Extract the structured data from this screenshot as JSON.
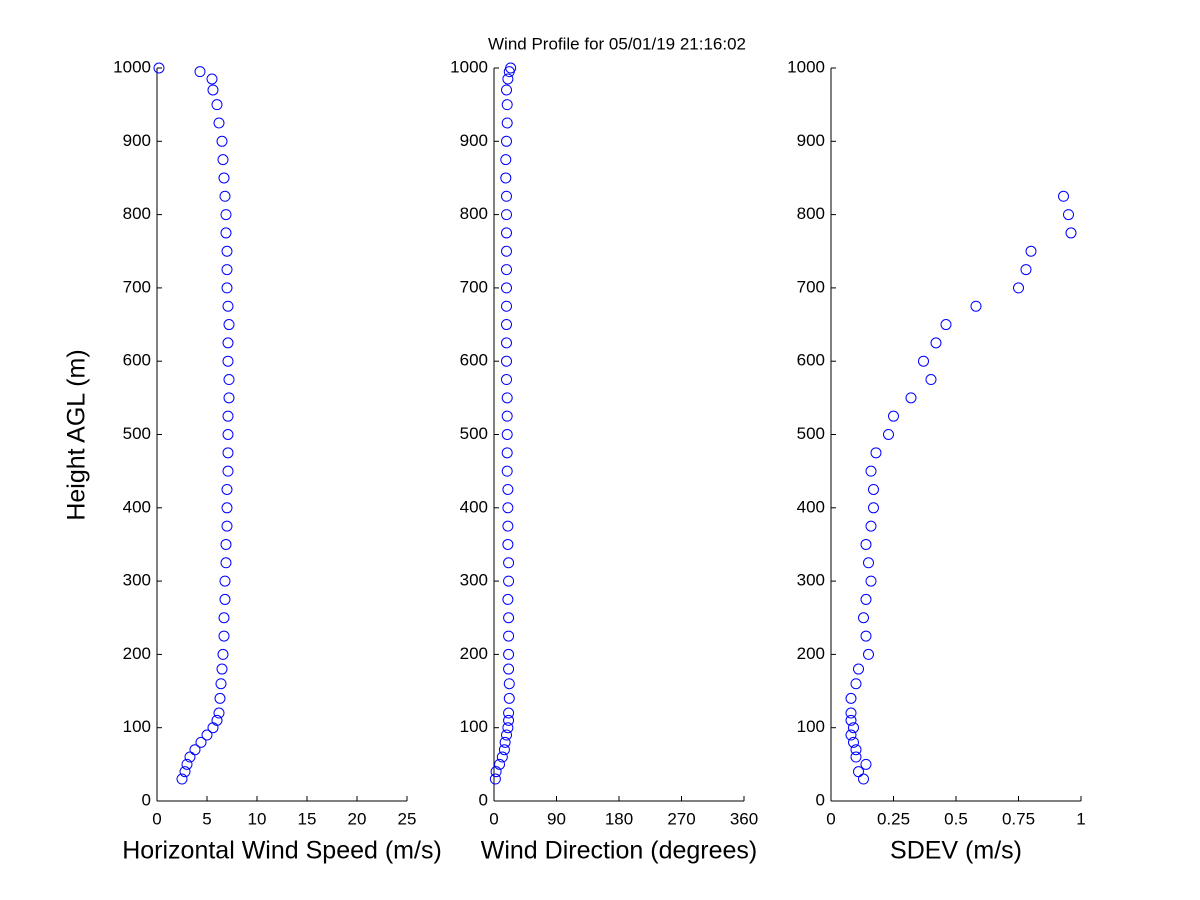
{
  "chart_data": [
    {
      "type": "scatter",
      "title": "Wind Profile for  05/01/19 21:16:02",
      "ylabel": "Height AGL (m)",
      "xlabel": "Horizontal Wind Speed (m/s)",
      "color": "#0000ff",
      "x": [
        2.5,
        2.8,
        3.0,
        3.3,
        3.8,
        4.4,
        5.0,
        5.6,
        6.0,
        6.2,
        6.3,
        6.4,
        6.5,
        6.6,
        6.7,
        6.7,
        6.8,
        6.8,
        6.9,
        6.9,
        7.0,
        7.0,
        7.0,
        7.1,
        7.1,
        7.1,
        7.1,
        7.2,
        7.2,
        7.1,
        7.1,
        7.2,
        7.1,
        7.0,
        7.0,
        7.0,
        6.9,
        6.9,
        6.8,
        6.7,
        6.6,
        6.5,
        6.2,
        6.0,
        5.6,
        5.5,
        4.3,
        0.2
      ],
      "values": [
        30,
        40,
        50,
        60,
        70,
        80,
        90,
        100,
        110,
        120,
        140,
        160,
        180,
        200,
        225,
        250,
        275,
        300,
        325,
        350,
        375,
        400,
        425,
        450,
        475,
        500,
        525,
        550,
        575,
        600,
        625,
        650,
        675,
        700,
        725,
        750,
        775,
        800,
        825,
        850,
        875,
        900,
        925,
        950,
        970,
        985,
        995,
        1000
      ],
      "xlim": [
        0,
        25
      ],
      "xticks": [
        0,
        5,
        10,
        15,
        20,
        25
      ],
      "ylim": [
        0,
        1000
      ],
      "yticks": [
        0,
        100,
        200,
        300,
        400,
        500,
        600,
        700,
        800,
        900,
        1000
      ]
    },
    {
      "type": "scatter",
      "xlabel": "Wind Direction (degrees)",
      "color": "#0000ff",
      "x": [
        2,
        3,
        8,
        12,
        15,
        16,
        18,
        20,
        21,
        21,
        22,
        22,
        21,
        21,
        21,
        21,
        20,
        21,
        21,
        20,
        20,
        20,
        20,
        19,
        19,
        19,
        19,
        19,
        18,
        18,
        18,
        18,
        18,
        18,
        18,
        18,
        18,
        18,
        18,
        17,
        17,
        18,
        19,
        19,
        18,
        20,
        22,
        24
      ],
      "values": [
        30,
        40,
        50,
        60,
        70,
        80,
        90,
        100,
        110,
        120,
        140,
        160,
        180,
        200,
        225,
        250,
        275,
        300,
        325,
        350,
        375,
        400,
        425,
        450,
        475,
        500,
        525,
        550,
        575,
        600,
        625,
        650,
        675,
        700,
        725,
        750,
        775,
        800,
        825,
        850,
        875,
        900,
        925,
        950,
        970,
        985,
        995,
        1000
      ],
      "xlim": [
        0,
        360
      ],
      "xticks": [
        0,
        90,
        180,
        270,
        360
      ],
      "ylim": [
        0,
        1000
      ],
      "yticks": [
        0,
        100,
        200,
        300,
        400,
        500,
        600,
        700,
        800,
        900,
        1000
      ]
    },
    {
      "type": "scatter",
      "xlabel": "SDEV  (m/s)",
      "color": "#0000ff",
      "x": [
        0.13,
        0.11,
        0.14,
        0.1,
        0.1,
        0.09,
        0.08,
        0.09,
        0.08,
        0.08,
        0.08,
        0.1,
        0.11,
        0.15,
        0.14,
        0.13,
        0.14,
        0.16,
        0.15,
        0.14,
        0.16,
        0.17,
        0.17,
        0.16,
        0.18,
        0.23,
        0.25,
        0.32,
        0.4,
        0.37,
        0.42,
        0.46,
        0.58,
        0.75,
        0.78,
        0.8,
        0.96,
        0.95,
        0.93
      ],
      "values": [
        30,
        40,
        50,
        60,
        70,
        80,
        90,
        100,
        110,
        120,
        140,
        160,
        180,
        200,
        225,
        250,
        275,
        300,
        325,
        350,
        375,
        400,
        425,
        450,
        475,
        500,
        525,
        550,
        575,
        600,
        625,
        650,
        675,
        700,
        725,
        750,
        775,
        800,
        825
      ],
      "xlim": [
        0,
        1
      ],
      "xticks": [
        0,
        0.25,
        0.5,
        0.75,
        1
      ],
      "ylim": [
        0,
        1000
      ],
      "yticks": [
        0,
        100,
        200,
        300,
        400,
        500,
        600,
        700,
        800,
        900,
        1000
      ]
    }
  ]
}
